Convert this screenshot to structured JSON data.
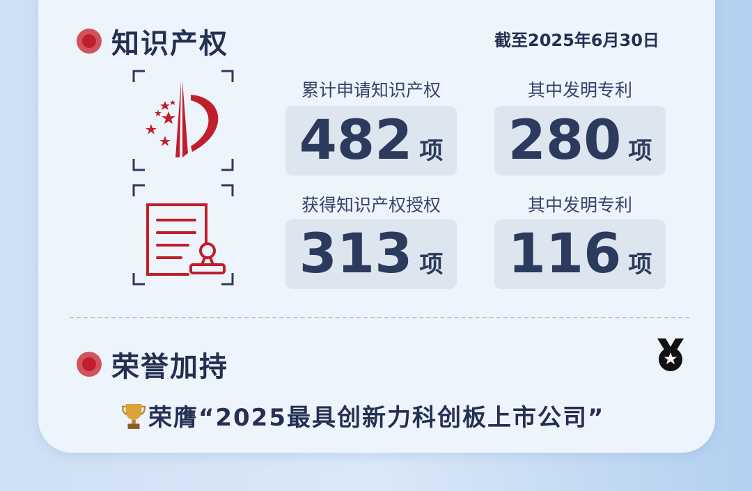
{
  "ip_section": {
    "title": "知识产权",
    "date": "截至2025年6月30日",
    "stats": [
      {
        "label": "累计申请知识产权",
        "value": "482",
        "unit": "项"
      },
      {
        "label": "其中发明专利",
        "value": "280",
        "unit": "项"
      },
      {
        "label": "获得知识产权授权",
        "value": "313",
        "unit": "项"
      },
      {
        "label": "其中发明专利",
        "value": "116",
        "unit": "项"
      }
    ],
    "icons": [
      "patent-emblem-icon",
      "certificate-icon"
    ]
  },
  "honor_section": {
    "title": "荣誉加持",
    "icon": "medal-icon",
    "award_icon": "trophy-icon",
    "award_text": "荣膺“2025最具创新力科创板上市公司”"
  },
  "colors": {
    "accent_red": "#c01e2c",
    "navy": "#233052",
    "card": "#eef4fc",
    "stat_box": "#dde5ef"
  }
}
